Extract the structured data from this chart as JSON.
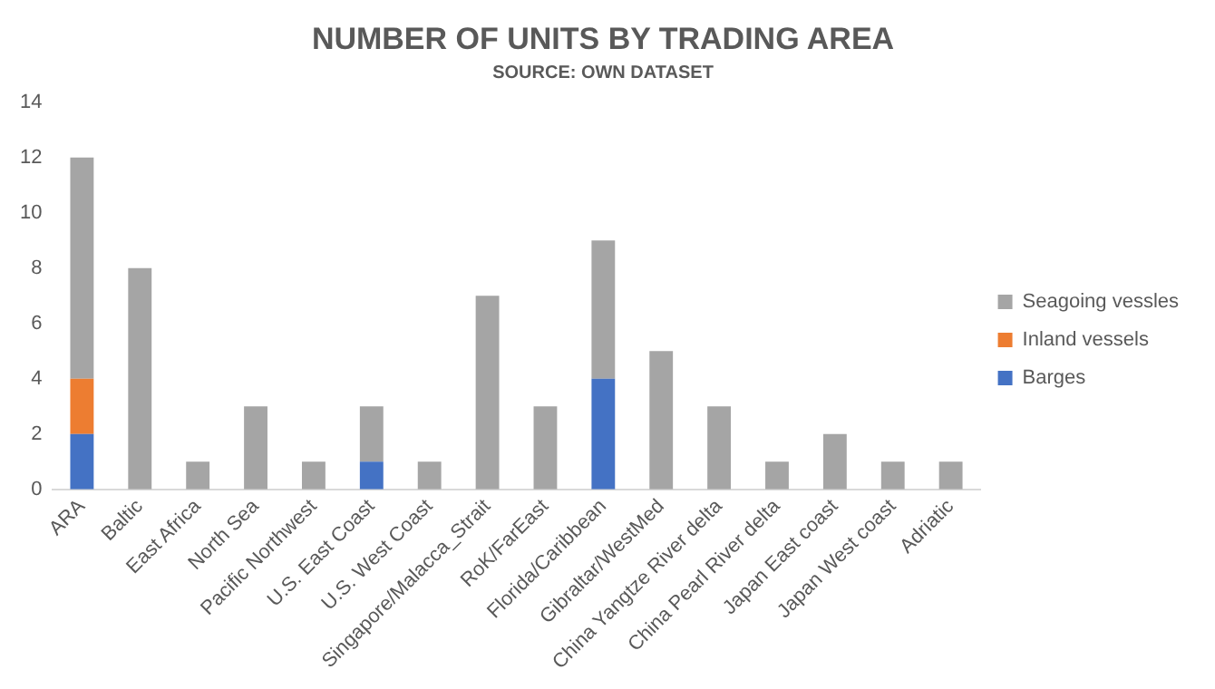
{
  "chart_data": {
    "type": "bar",
    "title": "NUMBER OF UNITS BY TRADING AREA",
    "subtitle": "SOURCE: OWN DATASET",
    "categories": [
      "ARA",
      "Baltic",
      "East Africa",
      "North Sea",
      "Pacific Northwest",
      "U.S. East Coast",
      "U.S. West Coast",
      "Singapore/Malacca_Strait",
      "RoK/FarEast",
      "Florida/Caribbean",
      "Gibraltar/WestMed",
      "China Yangtze River delta",
      "China Pearl River delta",
      "Japan East coast",
      "Japan West coast",
      "Adriatic"
    ],
    "stacked": true,
    "series": [
      {
        "name": "Barges",
        "color": "#4472c4",
        "values": [
          2,
          0,
          0,
          0,
          0,
          1,
          0,
          0,
          0,
          4,
          0,
          0,
          0,
          0,
          0,
          0
        ]
      },
      {
        "name": "Inland vessels",
        "color": "#ed7d31",
        "values": [
          2,
          0,
          0,
          0,
          0,
          0,
          0,
          0,
          0,
          0,
          0,
          0,
          0,
          0,
          0,
          0
        ]
      },
      {
        "name": "Seagoing vessles",
        "color": "#a5a5a5",
        "values": [
          8,
          8,
          1,
          3,
          1,
          2,
          1,
          7,
          3,
          5,
          5,
          3,
          1,
          2,
          1,
          1
        ]
      }
    ],
    "ylim": [
      0,
      14
    ],
    "yticks": [
      0,
      2,
      4,
      6,
      8,
      10,
      12,
      14
    ],
    "grid": false,
    "legend": "right"
  }
}
